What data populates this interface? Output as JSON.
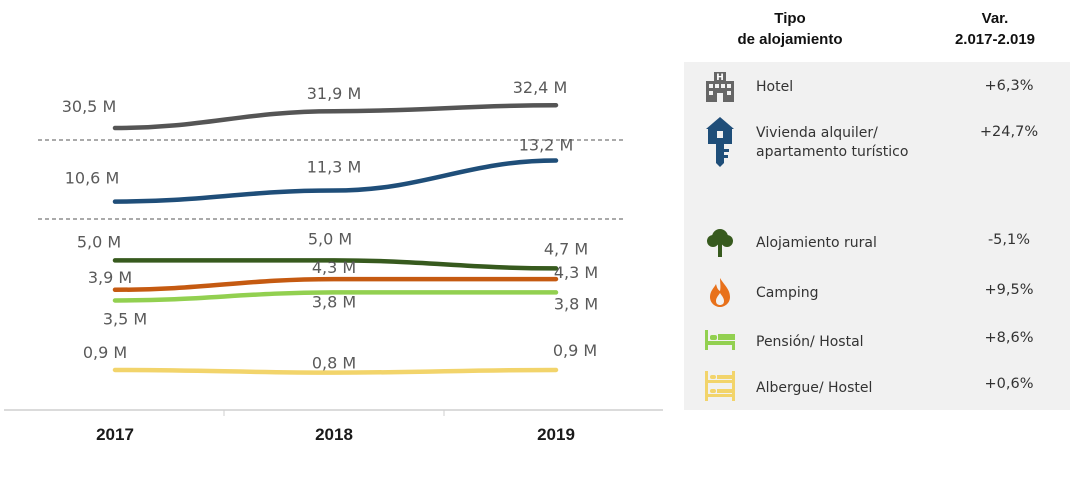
{
  "chart_data": {
    "type": "line",
    "x": [
      "2017",
      "2018",
      "2019"
    ],
    "series": [
      {
        "key": "hotel",
        "color": "#555555",
        "values": [
          30.5,
          31.9,
          32.4
        ],
        "labels": [
          "30,5 M",
          "31,9 M",
          "32,4 M"
        ]
      },
      {
        "key": "vivienda",
        "color": "#1f4e79",
        "values": [
          10.6,
          11.3,
          13.2
        ],
        "labels": [
          "10,6 M",
          "11,3 M",
          "13,2 M"
        ]
      },
      {
        "key": "rural",
        "color": "#375a1e",
        "values": [
          5.0,
          5.0,
          4.7
        ],
        "labels": [
          "5,0 M",
          "5,0 M",
          "4,7 M"
        ]
      },
      {
        "key": "camping",
        "color": "#c55a11",
        "values": [
          3.9,
          4.3,
          4.3
        ],
        "labels": [
          "3,9 M",
          "4,3 M",
          "4,3 M"
        ]
      },
      {
        "key": "pension",
        "color": "#92d050",
        "values": [
          3.5,
          3.8,
          3.8
        ],
        "labels": [
          "3,5 M",
          "3,8 M",
          "3,8 M"
        ]
      },
      {
        "key": "albergue",
        "color": "#f2d46b",
        "values": [
          0.9,
          0.8,
          0.9
        ],
        "labels": [
          "0,9 M",
          "0,8 M",
          "0,9 M"
        ]
      }
    ],
    "axis_breaks": 2,
    "grid": false
  },
  "table": {
    "header_type_line1": "Tipo",
    "header_type_line2": "de alojamiento",
    "header_var_line1": "Var.",
    "header_var_line2": "2.017-2.019",
    "rows": [
      {
        "icon": "hotel-icon",
        "color": "#666666",
        "name_line1": "Hotel",
        "name_line2": "",
        "var": "+6,3%"
      },
      {
        "icon": "house-key-icon",
        "color": "#1f4e79",
        "name_line1": "Vivienda alquiler/",
        "name_line2": "apartamento turístico",
        "var": "+24,7%"
      },
      {
        "icon": "tree-icon",
        "color": "#375a1e",
        "name_line1": "Alojamiento  rural",
        "name_line2": "",
        "var": "-5,1%"
      },
      {
        "icon": "fire-icon",
        "color": "#e8711b",
        "name_line1": "Camping",
        "name_line2": "",
        "var": "+9,5%"
      },
      {
        "icon": "bed-icon",
        "color": "#92d050",
        "name_line1": "Pensión/  Hostal",
        "name_line2": "",
        "var": "+8,6%"
      },
      {
        "icon": "bunk-bed-icon",
        "color": "#f2d46b",
        "name_line1": "Albergue/  Hostel",
        "name_line2": "",
        "var": "+0,6%"
      }
    ]
  }
}
